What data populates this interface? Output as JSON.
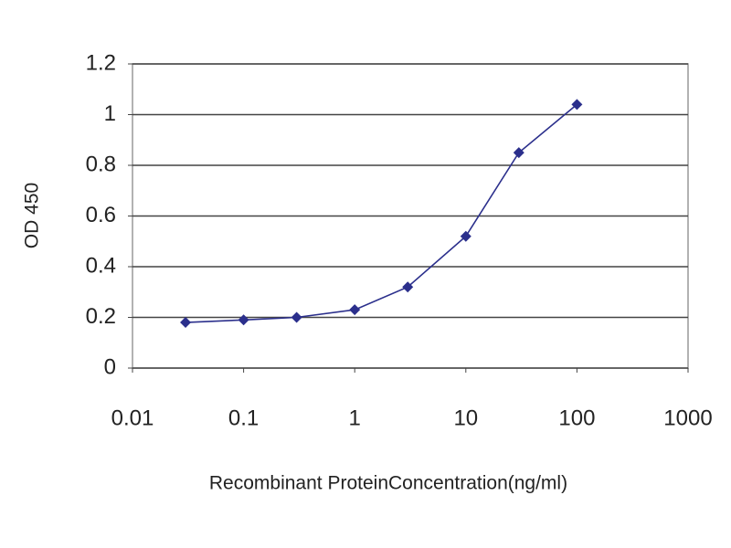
{
  "chart_data": {
    "type": "line",
    "x_label": "Recombinant ProteinConcentration(ng/ml)",
    "y_label": "OD 450",
    "x": [
      0.03,
      0.1,
      0.3,
      1,
      3,
      10,
      30,
      100
    ],
    "values": [
      0.18,
      0.19,
      0.2,
      0.23,
      0.32,
      0.52,
      0.85,
      1.04
    ],
    "color": "#2b2f8c",
    "xscale": "log",
    "xlim": [
      0.01,
      1000
    ],
    "xticks": [
      0.01,
      0.1,
      1,
      10,
      100,
      1000
    ],
    "ylim": [
      0,
      1.2
    ],
    "yticks": [
      0,
      0.2,
      0.4,
      0.6,
      0.8,
      1,
      1.2
    ],
    "grid": true
  }
}
